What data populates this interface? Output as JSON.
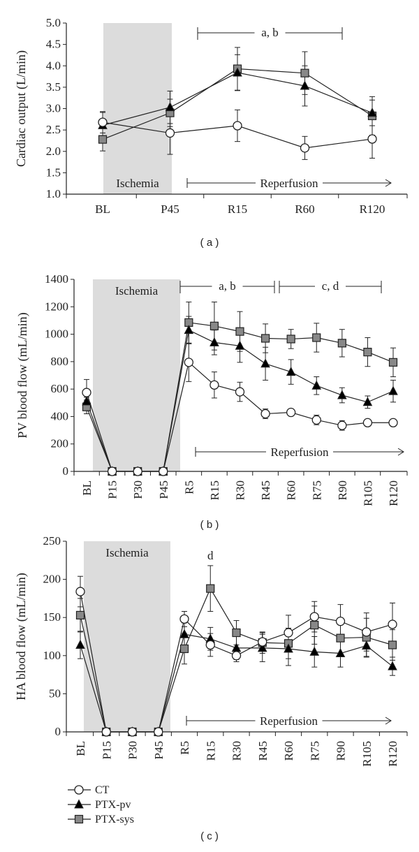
{
  "legend": [
    {
      "name": "CT",
      "marker": "circle",
      "fill": "#ffffff"
    },
    {
      "name": "PTX-pv",
      "marker": "triangle",
      "fill": "#000000"
    },
    {
      "name": "PTX-sys",
      "marker": "square",
      "fill": "#888888"
    }
  ],
  "colors": {
    "shade": "#dcdcdc",
    "line": "#222222"
  },
  "chart_data": [
    {
      "type": "line",
      "caption": "( a )",
      "ylabel": "Cardiac output (L/min)",
      "ylim": [
        1.0,
        5.0
      ],
      "yticks": [
        "1.0",
        "1.5",
        "2.0",
        "2.5",
        "3.0",
        "3.5",
        "4.0",
        "4.5",
        "5.0"
      ],
      "categories": [
        "BL",
        "P45",
        "R15",
        "R60",
        "R120"
      ],
      "rotate_labels": false,
      "ischemia_label": "Ischemia",
      "reperfusion_label": "Reperfusion",
      "annotations": [
        {
          "text": "a, b",
          "from": "P45-R15",
          "to": "R60-R120"
        }
      ],
      "series": [
        {
          "name": "CT",
          "values": [
            2.68,
            2.43,
            2.6,
            2.08,
            2.29
          ],
          "error": [
            0.25,
            0.5,
            0.37,
            0.27,
            0.45
          ]
        },
        {
          "name": "PTX-pv",
          "values": [
            2.61,
            3.03,
            3.84,
            3.53,
            2.9
          ],
          "error": [
            0.3,
            0.38,
            0.42,
            0.47,
            0.3
          ]
        },
        {
          "name": "PTX-sys",
          "values": [
            2.28,
            2.9,
            3.93,
            3.83,
            2.83
          ],
          "error": [
            0.27,
            0.32,
            0.5,
            0.5,
            0.45
          ]
        }
      ]
    },
    {
      "type": "line",
      "caption": "( b )",
      "ylabel": "PV blood flow (mL/min)",
      "ylim": [
        0,
        1400
      ],
      "yticks": [
        "0",
        "200",
        "400",
        "600",
        "800",
        "1000",
        "1200",
        "1400"
      ],
      "categories": [
        "BL",
        "P15",
        "P30",
        "P45",
        "R5",
        "R15",
        "R30",
        "R45",
        "R60",
        "R75",
        "R90",
        "R105",
        "R120"
      ],
      "rotate_labels": true,
      "ischemia_label": "Ischemia",
      "reperfusion_label": "Reperfusion",
      "annotations": [
        {
          "text": "a, b",
          "from": "R5",
          "to": "R45-R60"
        },
        {
          "text": "c, d",
          "from": "R45-R60",
          "to": "R105-R120"
        }
      ],
      "series": [
        {
          "name": "CT",
          "values": [
            575,
            0,
            0,
            0,
            795,
            630,
            580,
            420,
            430,
            375,
            335,
            355,
            355
          ],
          "error": [
            95,
            0,
            0,
            0,
            140,
            95,
            70,
            35,
            25,
            35,
            35,
            25,
            25
          ]
        },
        {
          "name": "PTX-pv",
          "values": [
            510,
            0,
            0,
            0,
            1030,
            940,
            915,
            785,
            725,
            625,
            555,
            505,
            585
          ],
          "error": [
            30,
            0,
            0,
            0,
            100,
            90,
            120,
            120,
            90,
            65,
            55,
            45,
            80
          ]
        },
        {
          "name": "PTX-sys",
          "values": [
            470,
            0,
            0,
            0,
            1085,
            1060,
            1020,
            970,
            965,
            975,
            935,
            870,
            795
          ],
          "error": [
            50,
            0,
            0,
            0,
            150,
            175,
            145,
            105,
            70,
            105,
            100,
            105,
            105
          ]
        }
      ]
    },
    {
      "type": "line",
      "caption": "( c )",
      "ylabel": "HA blood flow (mL/min)",
      "ylim": [
        0,
        250
      ],
      "yticks": [
        "0",
        "50",
        "100",
        "150",
        "200",
        "250"
      ],
      "categories": [
        "BL",
        "P15",
        "P30",
        "P45",
        "R5",
        "R15",
        "R30",
        "R45",
        "R60",
        "R75",
        "R90",
        "R105",
        "R120"
      ],
      "rotate_labels": true,
      "ischemia_label": "Ischemia",
      "reperfusion_label": "Reperfusion",
      "annotations": [
        {
          "text": "d",
          "at": "R15"
        }
      ],
      "series": [
        {
          "name": "CT",
          "values": [
            184,
            0,
            0,
            0,
            148,
            114,
            100,
            118,
            130,
            151,
            145,
            131,
            141
          ],
          "error": [
            20,
            0,
            0,
            0,
            10,
            15,
            8,
            12,
            23,
            20,
            22,
            25,
            28
          ]
        },
        {
          "name": "PTX-pv",
          "values": [
            114,
            0,
            0,
            0,
            128,
            122,
            110,
            110,
            109,
            105,
            103,
            113,
            86
          ],
          "error": [
            18,
            0,
            0,
            0,
            15,
            15,
            15,
            18,
            22,
            20,
            18,
            15,
            12
          ]
        },
        {
          "name": "PTX-sys",
          "values": [
            153,
            0,
            0,
            0,
            109,
            188,
            130,
            117,
            116,
            140,
            123,
            124,
            114
          ],
          "error": [
            22,
            0,
            0,
            0,
            20,
            30,
            16,
            14,
            20,
            25,
            22,
            25,
            20
          ]
        }
      ]
    }
  ]
}
